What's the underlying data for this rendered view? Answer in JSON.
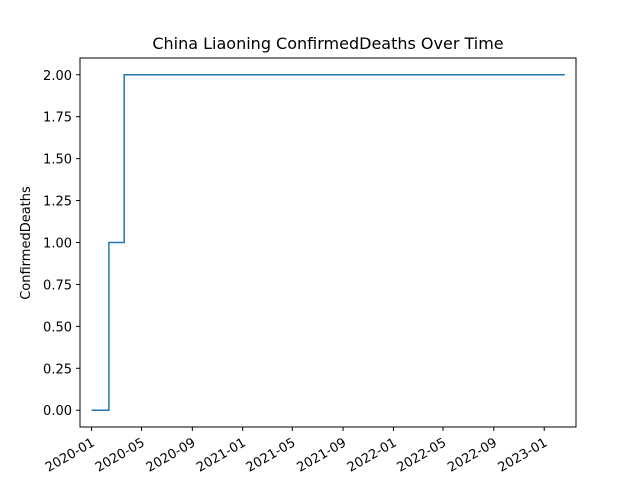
{
  "chart_data": {
    "type": "line",
    "title": "China Liaoning ConfirmedDeaths Over Time",
    "xlabel": "",
    "ylabel": "ConfirmedDeaths",
    "grid": false,
    "legend": "none",
    "line_color": "#1f77b4",
    "xlim": [
      "2019-12-04",
      "2023-03-19"
    ],
    "ylim": [
      -0.1,
      2.1
    ],
    "x_ticks": [
      "2020-01",
      "2020-05",
      "2020-09",
      "2021-01",
      "2021-05",
      "2021-09",
      "2022-01",
      "2022-05",
      "2022-09",
      "2023-01"
    ],
    "y_ticks": [
      "0.00",
      "0.25",
      "0.50",
      "0.75",
      "1.00",
      "1.25",
      "1.50",
      "1.75",
      "2.00"
    ],
    "series": [
      {
        "x": [
          "2020-01-01",
          "2020-02-12",
          "2020-02-12",
          "2020-03-20",
          "2020-03-20",
          "2023-02-20"
        ],
        "y": [
          0,
          0,
          1,
          1,
          2,
          2
        ]
      }
    ]
  }
}
